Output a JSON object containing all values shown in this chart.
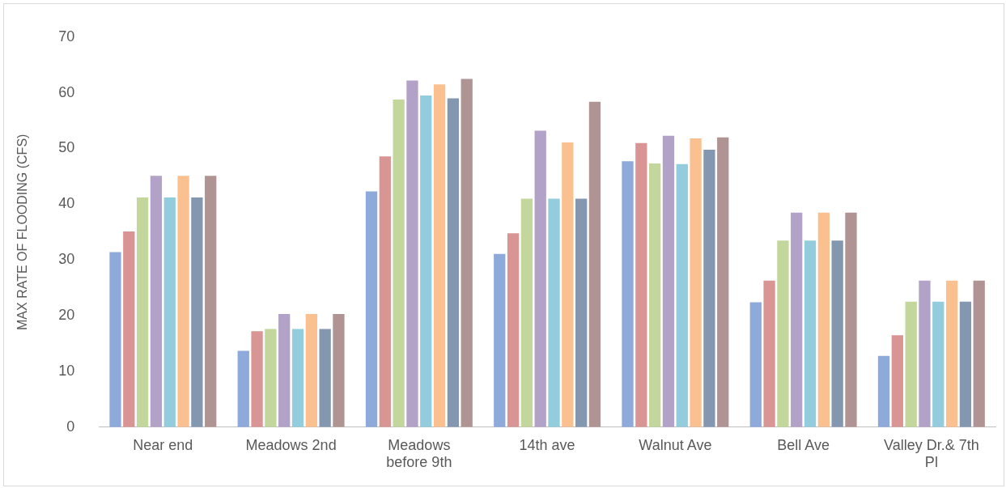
{
  "chart_data": {
    "type": "bar",
    "ylabel": "MAX RATE OF FLOODING (CFS)",
    "categories": [
      "Near end",
      "Meadows 2nd",
      "Meadows before 9th",
      "14th ave",
      "Walnut Ave",
      "Bell Ave",
      "Valley Dr.& 7th Pl"
    ],
    "ylim": [
      0,
      70
    ],
    "yticks": [
      0,
      10,
      20,
      30,
      40,
      50,
      60,
      70
    ],
    "grid": false,
    "legend": false,
    "series": [
      {
        "color": "#8eaadb",
        "values": [
          31.4,
          13.7,
          42.3,
          31.1,
          47.7,
          22.4,
          12.8
        ]
      },
      {
        "color": "#d99594",
        "values": [
          35.1,
          17.2,
          48.6,
          34.8,
          51.0,
          26.3,
          16.5
        ]
      },
      {
        "color": "#c3d69b",
        "values": [
          41.2,
          17.6,
          58.8,
          41.0,
          47.3,
          33.5,
          22.5
        ]
      },
      {
        "color": "#b3a2c7",
        "values": [
          45.1,
          20.3,
          62.2,
          53.2,
          52.3,
          38.5,
          26.3
        ]
      },
      {
        "color": "#93cddd",
        "values": [
          41.2,
          17.6,
          59.5,
          41.0,
          47.2,
          33.5,
          22.5
        ]
      },
      {
        "color": "#fac090",
        "values": [
          45.1,
          20.3,
          61.5,
          51.1,
          51.8,
          38.5,
          26.3
        ]
      },
      {
        "color": "#8497b0",
        "values": [
          41.2,
          17.6,
          59.0,
          41.0,
          49.8,
          33.5,
          22.5
        ]
      },
      {
        "color": "#b09494",
        "values": [
          45.1,
          20.3,
          62.5,
          58.4,
          52.0,
          38.5,
          26.3
        ]
      }
    ]
  }
}
